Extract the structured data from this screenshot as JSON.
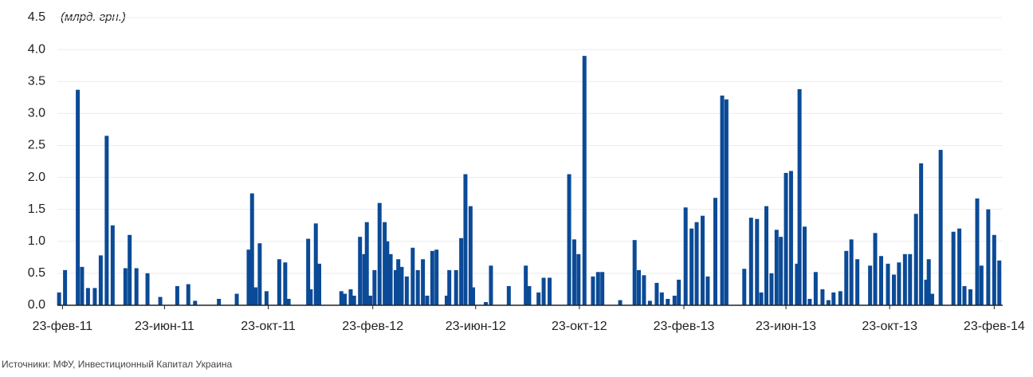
{
  "chart_data": {
    "type": "bar",
    "annotation": "(млрд. грн.)",
    "source": "Источники: МФУ, Инвестиционный Капитал Украина",
    "color": "#0b4a96",
    "grid": true,
    "xlim": [
      "2011-02-17",
      "2014-03-05"
    ],
    "xticks": [
      {
        "value": "2011-02-23",
        "label": "23-фев-11"
      },
      {
        "value": "2011-06-23",
        "label": "23-июн-11"
      },
      {
        "value": "2011-10-23",
        "label": "23-окт-11"
      },
      {
        "value": "2012-02-23",
        "label": "23-фев-12"
      },
      {
        "value": "2012-06-23",
        "label": "23-июн-12"
      },
      {
        "value": "2012-10-23",
        "label": "23-окт-12"
      },
      {
        "value": "2013-02-23",
        "label": "23-фев-13"
      },
      {
        "value": "2013-06-23",
        "label": "23-июн-13"
      },
      {
        "value": "2013-10-23",
        "label": "23-окт-13"
      },
      {
        "value": "2014-02-23",
        "label": "23-фев-14"
      }
    ],
    "ylim": [
      0,
      4.5
    ],
    "yticks": [
      {
        "value": 0,
        "label": "0.0"
      },
      {
        "value": 0.5,
        "label": "0.5"
      },
      {
        "value": 1,
        "label": "1.0"
      },
      {
        "value": 1.5,
        "label": "1.5"
      },
      {
        "value": 2,
        "label": "2.0"
      },
      {
        "value": 2.5,
        "label": "2.5"
      },
      {
        "value": 3,
        "label": "3.0"
      },
      {
        "value": 3.5,
        "label": "3.5"
      },
      {
        "value": 4,
        "label": "4.0"
      },
      {
        "value": 4.5,
        "label": "4.5"
      }
    ],
    "x": [
      "2011-02-19",
      "2011-02-26",
      "2011-03-13",
      "2011-03-18",
      "2011-03-25",
      "2011-04-02",
      "2011-04-09",
      "2011-04-16",
      "2011-04-23",
      "2011-05-08",
      "2011-05-13",
      "2011-05-21",
      "2011-06-03",
      "2011-06-18",
      "2011-07-08",
      "2011-07-21",
      "2011-07-29",
      "2011-08-26",
      "2011-09-16",
      "2011-09-30",
      "2011-10-04",
      "2011-10-08",
      "2011-10-13",
      "2011-10-21",
      "2011-11-05",
      "2011-11-12",
      "2011-11-16",
      "2011-12-09",
      "2011-12-12",
      "2011-12-18",
      "2011-12-22",
      "2012-01-17",
      "2012-01-21",
      "2012-01-28",
      "2012-02-01",
      "2012-02-08",
      "2012-02-13",
      "2012-02-16",
      "2012-02-20",
      "2012-02-25",
      "2012-03-02",
      "2012-03-08",
      "2012-03-11",
      "2012-03-15",
      "2012-03-21",
      "2012-03-24",
      "2012-03-28",
      "2012-04-03",
      "2012-04-10",
      "2012-04-16",
      "2012-04-22",
      "2012-04-27",
      "2012-05-03",
      "2012-05-08",
      "2012-05-20",
      "2012-05-23",
      "2012-05-31",
      "2012-06-06",
      "2012-06-11",
      "2012-06-17",
      "2012-06-20",
      "2012-07-05",
      "2012-07-11",
      "2012-08-01",
      "2012-08-21",
      "2012-08-25",
      "2012-09-05",
      "2012-09-11",
      "2012-09-18",
      "2012-10-11",
      "2012-10-17",
      "2012-10-22",
      "2012-10-29",
      "2012-11-08",
      "2012-11-14",
      "2012-11-19",
      "2012-12-10",
      "2012-12-27",
      "2013-01-01",
      "2013-01-07",
      "2013-01-14",
      "2013-01-22",
      "2013-01-28",
      "2013-02-04",
      "2013-02-12",
      "2013-02-17",
      "2013-02-25",
      "2013-03-04",
      "2013-03-10",
      "2013-03-17",
      "2013-03-23",
      "2013-04-01",
      "2013-04-09",
      "2013-04-14",
      "2013-05-05",
      "2013-05-13",
      "2013-05-20",
      "2013-05-25",
      "2013-05-31",
      "2013-06-06",
      "2013-06-12",
      "2013-06-17",
      "2013-06-23",
      "2013-06-29",
      "2013-07-06",
      "2013-07-09",
      "2013-07-15",
      "2013-07-21",
      "2013-07-28",
      "2013-08-05",
      "2013-08-12",
      "2013-08-18",
      "2013-08-26",
      "2013-09-02",
      "2013-09-08",
      "2013-09-15",
      "2013-09-30",
      "2013-10-06",
      "2013-10-13",
      "2013-10-21",
      "2013-10-28",
      "2013-11-03",
      "2013-11-10",
      "2013-11-16",
      "2013-11-23",
      "2013-11-29",
      "2013-12-05",
      "2013-12-08",
      "2013-12-12",
      "2013-12-22",
      "2014-01-06",
      "2014-01-13",
      "2014-01-19",
      "2014-01-26",
      "2014-02-03",
      "2014-02-08",
      "2014-02-16",
      "2014-02-23",
      "2014-03-01"
    ],
    "values": [
      0.2,
      0.55,
      3.37,
      0.6,
      0.27,
      0.27,
      0.78,
      2.65,
      1.25,
      0.58,
      1.1,
      0.58,
      0.5,
      0.13,
      0.3,
      0.33,
      0.07,
      0.1,
      0.18,
      0.87,
      1.75,
      0.28,
      0.97,
      0.22,
      0.72,
      0.67,
      0.1,
      1.04,
      0.25,
      1.28,
      0.65,
      0.22,
      0.18,
      0.25,
      0.15,
      1.07,
      0.8,
      1.3,
      0.15,
      0.55,
      1.6,
      1.3,
      1.0,
      0.8,
      0.55,
      0.72,
      0.6,
      0.45,
      0.9,
      0.55,
      0.72,
      0.15,
      0.85,
      0.87,
      0.15,
      0.55,
      0.55,
      1.05,
      2.05,
      1.55,
      0.28,
      0.05,
      0.62,
      0.3,
      0.62,
      0.3,
      0.2,
      0.43,
      0.43,
      2.05,
      1.03,
      0.8,
      3.9,
      0.45,
      0.52,
      0.52,
      0.08,
      1.02,
      0.55,
      0.47,
      0.07,
      0.35,
      0.2,
      0.1,
      0.15,
      0.4,
      1.53,
      1.2,
      1.3,
      1.4,
      0.45,
      1.68,
      3.28,
      3.22,
      0.57,
      1.37,
      1.35,
      0.2,
      1.55,
      0.5,
      1.18,
      1.07,
      2.07,
      2.1,
      0.65,
      3.38,
      1.23,
      0.1,
      0.52,
      0.25,
      0.08,
      0.2,
      0.22,
      0.85,
      1.03,
      0.72,
      0.62,
      1.13,
      0.77,
      0.65,
      0.48,
      0.67,
      0.8,
      0.8,
      1.43,
      2.22,
      0.4,
      0.72,
      0.18,
      2.43,
      1.15,
      1.2,
      0.3,
      0.25,
      1.67,
      0.62,
      1.5,
      1.1,
      0.7
    ]
  }
}
